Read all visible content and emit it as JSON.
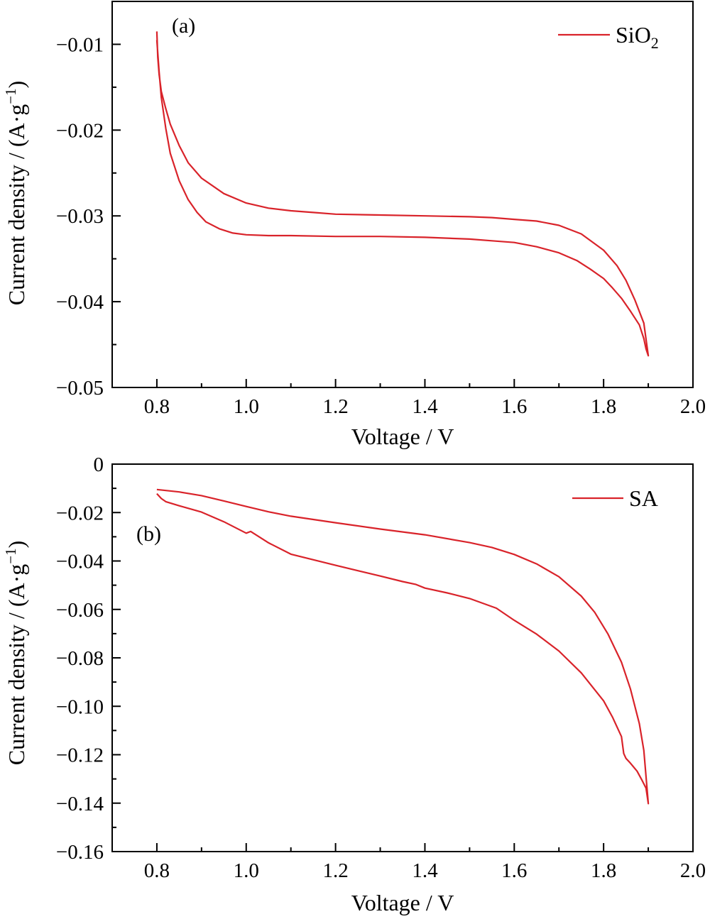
{
  "chart_data": [
    {
      "panel": "(a)",
      "type": "line",
      "xlabel": "Voltage / V",
      "ylabel": "Current density / (A·g⁻¹)",
      "ylabel_prefix": "Current density / (A·g",
      "ylabel_exponent": "−1",
      "ylabel_suffix": ")",
      "xlim": [
        0.7,
        2.0
      ],
      "ylim": [
        -0.05,
        -0.005
      ],
      "xticks": [
        0.8,
        1.0,
        1.2,
        1.4,
        1.6,
        1.8,
        2.0
      ],
      "xtick_labels": [
        "0.8",
        "1.0",
        "1.2",
        "1.4",
        "1.6",
        "1.8",
        "2.0"
      ],
      "yticks": [
        -0.01,
        -0.02,
        -0.03,
        -0.04,
        -0.05
      ],
      "ytick_labels": [
        "−0.01",
        "−0.02",
        "−0.03",
        "−0.04",
        "−0.05"
      ],
      "legend_position": "top-right",
      "grid": false,
      "series": [
        {
          "name": "SiO₂",
          "legend_base": "SiO",
          "legend_subscript": "2",
          "color": "#d9232a",
          "x": [
            0.8,
            0.802,
            0.805,
            0.81,
            0.82,
            0.83,
            0.85,
            0.87,
            0.9,
            0.95,
            1.0,
            1.05,
            1.1,
            1.15,
            1.2,
            1.3,
            1.4,
            1.5,
            1.55,
            1.6,
            1.65,
            1.7,
            1.75,
            1.8,
            1.83,
            1.85,
            1.87,
            1.89,
            1.9,
            1.895,
            1.89,
            1.88,
            1.86,
            1.84,
            1.82,
            1.8,
            1.77,
            1.74,
            1.7,
            1.65,
            1.6,
            1.55,
            1.5,
            1.4,
            1.3,
            1.2,
            1.1,
            1.05,
            1.0,
            0.97,
            0.94,
            0.91,
            0.89,
            0.87,
            0.85,
            0.83,
            0.82,
            0.81,
            0.805,
            0.8
          ],
          "y": [
            -0.0085,
            -0.0115,
            -0.0135,
            -0.0155,
            -0.0175,
            -0.0193,
            -0.0218,
            -0.0238,
            -0.0256,
            -0.0274,
            -0.0285,
            -0.0291,
            -0.0294,
            -0.0296,
            -0.0298,
            -0.0299,
            -0.03,
            -0.0301,
            -0.0302,
            -0.0304,
            -0.0306,
            -0.0311,
            -0.0321,
            -0.034,
            -0.0358,
            -0.0375,
            -0.0398,
            -0.0425,
            -0.0463,
            -0.0455,
            -0.0443,
            -0.0427,
            -0.0411,
            -0.0396,
            -0.0384,
            -0.0373,
            -0.0362,
            -0.0352,
            -0.0343,
            -0.0336,
            -0.0331,
            -0.0329,
            -0.0327,
            -0.0325,
            -0.0324,
            -0.0324,
            -0.0323,
            -0.0323,
            -0.0322,
            -0.032,
            -0.0315,
            -0.0307,
            -0.0296,
            -0.0281,
            -0.0259,
            -0.0227,
            -0.0198,
            -0.0162,
            -0.0132,
            -0.0095
          ]
        }
      ]
    },
    {
      "panel": "(b)",
      "type": "line",
      "xlabel": "Voltage / V",
      "ylabel": "Current density / (A·g⁻¹)",
      "ylabel_prefix": "Current density / (A·g",
      "ylabel_exponent": "−1",
      "ylabel_suffix": ")",
      "xlim": [
        0.7,
        2.0
      ],
      "ylim": [
        -0.16,
        0.0
      ],
      "xticks": [
        0.8,
        1.0,
        1.2,
        1.4,
        1.6,
        1.8,
        2.0
      ],
      "xtick_labels": [
        "0.8",
        "1.0",
        "1.2",
        "1.4",
        "1.6",
        "1.8",
        "2.0"
      ],
      "yticks": [
        0.0,
        -0.02,
        -0.04,
        -0.06,
        -0.08,
        -0.1,
        -0.12,
        -0.14,
        -0.16
      ],
      "ytick_labels": [
        "0",
        "−0.02",
        "−0.04",
        "−0.06",
        "−0.08",
        "−0.10",
        "−0.12",
        "−0.14",
        "−0.16"
      ],
      "legend_position": "top-right",
      "grid": false,
      "series": [
        {
          "name": "SA",
          "legend_base": "SA",
          "legend_subscript": "",
          "color": "#d9232a",
          "x": [
            0.8,
            0.85,
            0.9,
            0.95,
            1.0,
            1.05,
            1.1,
            1.2,
            1.3,
            1.4,
            1.5,
            1.55,
            1.6,
            1.65,
            1.7,
            1.75,
            1.78,
            1.81,
            1.84,
            1.86,
            1.88,
            1.89,
            1.9,
            1.895,
            1.885,
            1.875,
            1.86,
            1.85,
            1.845,
            1.84,
            1.82,
            1.8,
            1.75,
            1.7,
            1.65,
            1.6,
            1.56,
            1.5,
            1.45,
            1.4,
            1.38,
            1.35,
            1.3,
            1.2,
            1.1,
            1.05,
            1.01,
            1.0,
            0.95,
            0.9,
            0.85,
            0.82,
            0.81,
            0.8
          ],
          "y": [
            -0.0105,
            -0.0115,
            -0.013,
            -0.0152,
            -0.0175,
            -0.0197,
            -0.0215,
            -0.0242,
            -0.0268,
            -0.0292,
            -0.0324,
            -0.0344,
            -0.0373,
            -0.0412,
            -0.0465,
            -0.0545,
            -0.0612,
            -0.0702,
            -0.0818,
            -0.0928,
            -0.1072,
            -0.1182,
            -0.1402,
            -0.1338,
            -0.1302,
            -0.1268,
            -0.1235,
            -0.1215,
            -0.1195,
            -0.1125,
            -0.1045,
            -0.0978,
            -0.0862,
            -0.0772,
            -0.0702,
            -0.0645,
            -0.0595,
            -0.0555,
            -0.0532,
            -0.0512,
            -0.0497,
            -0.0485,
            -0.0462,
            -0.0418,
            -0.0372,
            -0.0325,
            -0.0278,
            -0.0285,
            -0.0238,
            -0.0198,
            -0.0172,
            -0.0155,
            -0.0142,
            -0.0122
          ]
        }
      ]
    }
  ]
}
